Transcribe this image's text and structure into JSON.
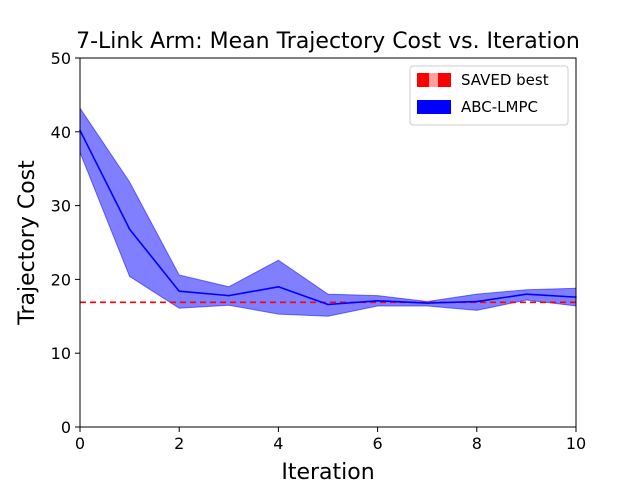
{
  "chart_data": {
    "type": "line",
    "title": "7-Link Arm: Mean Trajectory Cost vs. Iteration",
    "xlabel": "Iteration",
    "ylabel": "Trajectory Cost",
    "xlim": [
      0,
      10
    ],
    "ylim": [
      0,
      50
    ],
    "xticks": [
      0,
      2,
      4,
      6,
      8,
      10
    ],
    "yticks": [
      0,
      10,
      20,
      30,
      40,
      50
    ],
    "legend_position": "top-right",
    "series": [
      {
        "name": "SAVED best",
        "style": "dashed-hline",
        "color": "#ff0000",
        "value": 16.9
      },
      {
        "name": "ABC-LMPC",
        "style": "line-with-band",
        "color": "#0000ff",
        "band_color": "#0000ff",
        "x": [
          0,
          1,
          2,
          3,
          4,
          5,
          6,
          7,
          8,
          9,
          10
        ],
        "mean": [
          40.2,
          26.8,
          18.4,
          17.8,
          19.0,
          16.6,
          17.1,
          16.8,
          17.0,
          18.0,
          17.6
        ],
        "upper": [
          43.2,
          33.2,
          20.6,
          19.0,
          22.6,
          18.0,
          17.8,
          17.0,
          18.0,
          18.6,
          18.8
        ],
        "lower": [
          37.2,
          20.4,
          16.1,
          16.5,
          15.3,
          15.0,
          16.4,
          16.4,
          15.8,
          17.2,
          16.4
        ]
      }
    ]
  }
}
